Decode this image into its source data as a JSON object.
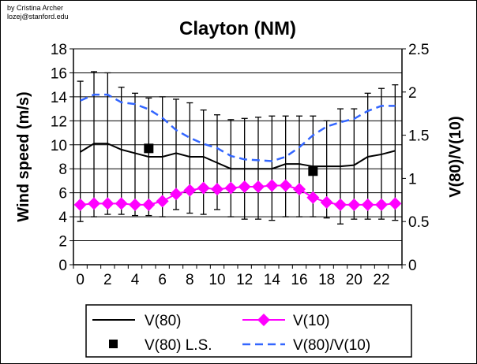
{
  "credit": {
    "author": "by Cristina Archer",
    "email": "lozej@stanford.edu"
  },
  "chart_data": {
    "type": "line",
    "title": "Clayton (NM)",
    "xlabel": "",
    "ylabel": "Wind speed (m/s)",
    "y2label": "V(80)/V(10)",
    "ylim": [
      0,
      18
    ],
    "y2lim": [
      0,
      2.5
    ],
    "yticks": [
      "0",
      "2",
      "4",
      "6",
      "8",
      "10",
      "12",
      "14",
      "16",
      "18"
    ],
    "y2ticks": [
      "0",
      "0.5",
      "1",
      "1.5",
      "2",
      "2.5"
    ],
    "x": [
      0,
      1,
      2,
      3,
      4,
      5,
      6,
      7,
      8,
      9,
      10,
      11,
      12,
      13,
      14,
      15,
      16,
      17,
      18,
      19,
      20,
      21,
      22,
      23
    ],
    "xticks": [
      "0",
      "2",
      "4",
      "6",
      "8",
      "10",
      "12",
      "14",
      "16",
      "18",
      "20",
      "22"
    ],
    "grid": true,
    "legend_position": "bottom",
    "series": [
      {
        "name": "V(80)",
        "axis": "left",
        "style": "solid",
        "color": "#000000",
        "values": [
          9.4,
          10.1,
          10.1,
          9.6,
          9.3,
          9.0,
          9.0,
          9.3,
          9.0,
          9.0,
          8.5,
          8.0,
          8.0,
          8.0,
          8.0,
          8.4,
          8.4,
          8.2,
          8.2,
          8.2,
          8.3,
          9.0,
          9.2,
          9.5
        ],
        "error_upper": [
          15.3,
          16.1,
          16.0,
          14.8,
          14.3,
          13.9,
          14.0,
          13.8,
          13.5,
          12.9,
          12.5,
          12.1,
          12.2,
          12.3,
          12.4,
          12.4,
          12.4,
          12.4,
          12.0,
          13.0,
          13.0,
          14.3,
          14.7,
          15.0
        ],
        "error_lower": [
          3.6,
          4.0,
          4.2,
          4.2,
          4.1,
          4.1,
          4.0,
          4.6,
          4.3,
          4.2,
          4.6,
          4.0,
          3.8,
          3.8,
          3.7,
          4.0,
          4.0,
          4.0,
          3.9,
          3.4,
          3.8,
          3.8,
          3.8,
          3.7
        ]
      },
      {
        "name": "V(10)",
        "axis": "left",
        "style": "diamond",
        "color": "#ff00ff",
        "values": [
          5.0,
          5.1,
          5.1,
          5.1,
          5.0,
          5.0,
          5.3,
          5.9,
          6.2,
          6.4,
          6.3,
          6.4,
          6.5,
          6.5,
          6.6,
          6.6,
          6.3,
          5.6,
          5.2,
          5.0,
          5.0,
          5.0,
          5.0,
          5.1
        ]
      },
      {
        "name": "V(80) L.S.",
        "axis": "left",
        "style": "square",
        "color": "#000000",
        "points": [
          {
            "x": 5,
            "y": 9.7
          },
          {
            "x": 17,
            "y": 7.8
          }
        ]
      },
      {
        "name": "V(80)/V(10)",
        "axis": "right",
        "style": "dashed",
        "color": "#3366ff",
        "values": [
          1.9,
          1.97,
          1.97,
          1.88,
          1.86,
          1.8,
          1.7,
          1.56,
          1.47,
          1.4,
          1.35,
          1.26,
          1.22,
          1.21,
          1.2,
          1.25,
          1.36,
          1.5,
          1.6,
          1.65,
          1.69,
          1.78,
          1.84,
          1.84
        ]
      }
    ]
  }
}
